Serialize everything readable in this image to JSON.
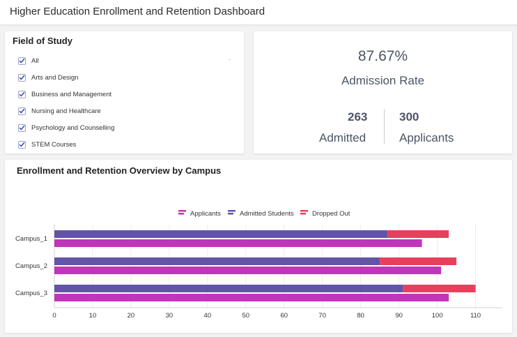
{
  "header": {
    "title": "Higher Education Enrollment and Retention Dashboard"
  },
  "filter": {
    "title": "Field of Study",
    "options": [
      {
        "label": "All",
        "checked": true
      },
      {
        "label": "Arts and Design",
        "checked": true
      },
      {
        "label": "Business and Management",
        "checked": true
      },
      {
        "label": "Nursing and Healthcare",
        "checked": true
      },
      {
        "label": "Psychology and Counselling",
        "checked": true
      },
      {
        "label": "STEM Courses",
        "checked": true
      }
    ]
  },
  "kpi": {
    "rate_value": "87.67%",
    "rate_label": "Admission Rate",
    "admitted_value": "263",
    "admitted_label": "Admitted",
    "applicants_value": "300",
    "applicants_label": "Applicants"
  },
  "chart": {
    "title": "Enrollment and Retention Overview by Campus"
  },
  "colors": {
    "applicants": "#c135b8",
    "admitted": "#6454a8",
    "dropped": "#e8405c",
    "checkbox": "#3f51b5"
  },
  "chart_data": {
    "type": "bar",
    "orientation": "horizontal",
    "categories": [
      "Campus_1",
      "Campus_2",
      "Campus_3"
    ],
    "series": [
      {
        "name": "Applicants",
        "values": [
          96,
          101,
          103
        ]
      },
      {
        "name": "Admitted Students",
        "values": [
          87,
          85,
          91
        ],
        "stack": "admitted"
      },
      {
        "name": "Dropped Out",
        "values": [
          16,
          20,
          19
        ],
        "stack": "admitted"
      }
    ],
    "x_ticks": [
      "0",
      "10",
      "20",
      "30",
      "40",
      "50",
      "60",
      "70",
      "80",
      "90",
      "100",
      "110",
      "1"
    ],
    "xlim": [
      0,
      117
    ],
    "legend": "top-center",
    "grid": true
  }
}
